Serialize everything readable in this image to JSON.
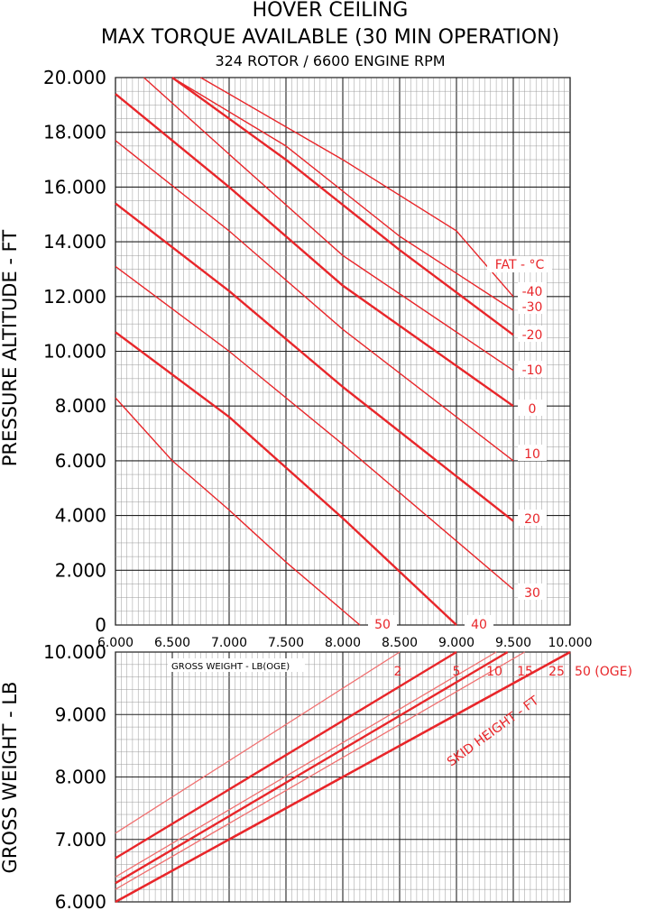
{
  "titles": {
    "line1": "HOVER CEILING",
    "line2": "MAX TORQUE AVAILABLE (30 MIN OPERATION)",
    "line3": "324 ROTOR / 6600 ENGINE RPM"
  },
  "colors": {
    "curve": "#e8262a",
    "curve_light": "#f07070",
    "grid": "#555555",
    "grid_minor": "#9a9a9a"
  },
  "chart_data": [
    {
      "type": "line",
      "ylabel": "PRESSURE ALTITUDE - FT",
      "xlabel": "GROSS WEIGHT - LB(OGE)",
      "xlim": [
        6000,
        10000
      ],
      "ylim": [
        0,
        20000
      ],
      "x_ticks": [
        "6.000",
        "6.500",
        "7.000",
        "7.500",
        "8.000",
        "8.500",
        "9.000",
        "9.500",
        "10.000"
      ],
      "y_ticks": [
        "0",
        "2.000",
        "4.000",
        "6.000",
        "8.000",
        "10.000",
        "12.000",
        "14.000",
        "16.000",
        "18.000",
        "20.000"
      ],
      "legend_title": "FAT - °C",
      "series": [
        {
          "name": "-40",
          "points": [
            [
              6750,
              20000
            ],
            [
              8000,
              17000
            ],
            [
              9000,
              14400
            ],
            [
              9500,
              12000
            ]
          ]
        },
        {
          "name": "-30",
          "points": [
            [
              6500,
              20000
            ],
            [
              7500,
              17500
            ],
            [
              8500,
              14200
            ],
            [
              9500,
              11500
            ]
          ]
        },
        {
          "name": "-20",
          "points": [
            [
              6500,
              20000
            ],
            [
              7500,
              17000
            ],
            [
              8500,
              13700
            ],
            [
              9500,
              10600
            ]
          ]
        },
        {
          "name": "-10",
          "points": [
            [
              6250,
              20000
            ],
            [
              7000,
              17200
            ],
            [
              8000,
              13500
            ],
            [
              9500,
              9300
            ]
          ]
        },
        {
          "name": "0",
          "points": [
            [
              6000,
              19400
            ],
            [
              7000,
              16000
            ],
            [
              8000,
              12400
            ],
            [
              9500,
              8000
            ]
          ]
        },
        {
          "name": "10",
          "points": [
            [
              6000,
              17700
            ],
            [
              7000,
              14400
            ],
            [
              8000,
              10800
            ],
            [
              9500,
              6000
            ]
          ]
        },
        {
          "name": "20",
          "points": [
            [
              6000,
              15400
            ],
            [
              7000,
              12200
            ],
            [
              8000,
              8700
            ],
            [
              9500,
              3800
            ]
          ]
        },
        {
          "name": "30",
          "points": [
            [
              6000,
              13100
            ],
            [
              7000,
              10000
            ],
            [
              8000,
              6600
            ],
            [
              9500,
              1300
            ]
          ]
        },
        {
          "name": "40",
          "points": [
            [
              6000,
              10700
            ],
            [
              7000,
              7600
            ],
            [
              8000,
              3900
            ],
            [
              9000,
              0
            ]
          ]
        },
        {
          "name": "50",
          "points": [
            [
              6000,
              8300
            ],
            [
              6500,
              6000
            ],
            [
              7000,
              4200
            ],
            [
              7500,
              2300
            ],
            [
              8150,
              0
            ]
          ]
        }
      ]
    },
    {
      "type": "line",
      "ylabel": "GROSS WEIGHT - LB",
      "ylim": [
        6000,
        10000
      ],
      "xlim": [
        6000,
        10000
      ],
      "y_ticks": [
        "6.000",
        "7.000",
        "8.000",
        "9.000",
        "10.000"
      ],
      "annotation": "SKID HEIGHT - FT",
      "series": [
        {
          "name": "2",
          "points": [
            [
              6000,
              7100
            ],
            [
              8500,
              10000
            ]
          ]
        },
        {
          "name": "5",
          "points": [
            [
              6000,
              6700
            ],
            [
              9000,
              10000
            ]
          ]
        },
        {
          "name": "10",
          "points": [
            [
              6000,
              6400
            ],
            [
              9350,
              10000
            ]
          ]
        },
        {
          "name": "15",
          "points": [
            [
              6000,
              6300
            ],
            [
              9450,
              10000
            ]
          ]
        },
        {
          "name": "25",
          "points": [
            [
              6000,
              6200
            ],
            [
              9600,
              10000
            ]
          ]
        },
        {
          "name": "50 (OGE)",
          "points": [
            [
              6000,
              6000
            ],
            [
              10000,
              10000
            ]
          ]
        }
      ]
    }
  ]
}
